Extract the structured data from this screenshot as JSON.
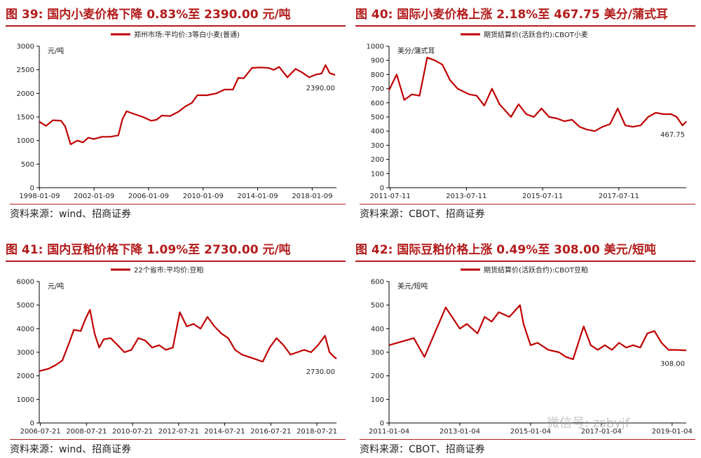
{
  "theme": {
    "accent": "#b31b1b",
    "series": "#c00000"
  },
  "watermark": "微信号: zsbyjf",
  "chart_data": [
    {
      "type": "line",
      "title_prefix": "图 39:",
      "title": "国内小麦价格下降 0.83%至 2390.00 元/吨",
      "legend": "郑州市场:平均价:3等白小麦(普通)",
      "unit": "元/吨",
      "source": "资料来源：wind、招商证券",
      "ylim": [
        0,
        3000
      ],
      "yticks": [
        0,
        500,
        1000,
        1500,
        2000,
        2500,
        3000
      ],
      "xlim": [
        1998.0,
        2019.8
      ],
      "xticks": [
        {
          "label": "1998-01-09",
          "x": 1998.02
        },
        {
          "label": "2002-01-09",
          "x": 2002.02
        },
        {
          "label": "2006-01-09",
          "x": 2006.02
        },
        {
          "label": "2010-01-09",
          "x": 2010.02
        },
        {
          "label": "2014-01-09",
          "x": 2014.02
        },
        {
          "label": "2018-01-09",
          "x": 2018.02
        }
      ],
      "end_label": "2390.00",
      "series": [
        {
          "points": [
            [
              1998.0,
              1400
            ],
            [
              1998.5,
              1310
            ],
            [
              1999.0,
              1430
            ],
            [
              1999.6,
              1420
            ],
            [
              1999.9,
              1300
            ],
            [
              2000.3,
              920
            ],
            [
              2000.8,
              1000
            ],
            [
              2001.2,
              960
            ],
            [
              2001.6,
              1060
            ],
            [
              2002.0,
              1030
            ],
            [
              2002.6,
              1080
            ],
            [
              2003.2,
              1080
            ],
            [
              2003.8,
              1110
            ],
            [
              2004.1,
              1450
            ],
            [
              2004.4,
              1620
            ],
            [
              2005.0,
              1560
            ],
            [
              2005.6,
              1500
            ],
            [
              2006.2,
              1420
            ],
            [
              2006.6,
              1440
            ],
            [
              2007.0,
              1530
            ],
            [
              2007.6,
              1520
            ],
            [
              2008.2,
              1610
            ],
            [
              2008.7,
              1720
            ],
            [
              2009.2,
              1800
            ],
            [
              2009.6,
              1960
            ],
            [
              2010.3,
              1960
            ],
            [
              2011.0,
              2000
            ],
            [
              2011.6,
              2080
            ],
            [
              2012.2,
              2080
            ],
            [
              2012.6,
              2330
            ],
            [
              2013.0,
              2320
            ],
            [
              2013.6,
              2540
            ],
            [
              2014.2,
              2550
            ],
            [
              2014.8,
              2540
            ],
            [
              2015.2,
              2500
            ],
            [
              2015.6,
              2560
            ],
            [
              2016.2,
              2340
            ],
            [
              2016.8,
              2520
            ],
            [
              2017.3,
              2440
            ],
            [
              2017.8,
              2340
            ],
            [
              2018.3,
              2400
            ],
            [
              2018.7,
              2420
            ],
            [
              2019.0,
              2600
            ],
            [
              2019.3,
              2430
            ],
            [
              2019.7,
              2390
            ]
          ]
        }
      ]
    },
    {
      "type": "line",
      "title_prefix": "图 40:",
      "title": "国际小麦价格上涨 2.18%至 467.75 美分/蒲式耳",
      "legend": "期货结算价(活跃合约):CBOT小麦",
      "unit": "美分/蒲式耳",
      "source": "资料来源：CBOT、招商证券",
      "ylim": [
        0,
        1000
      ],
      "yticks": [
        0,
        100,
        200,
        300,
        400,
        500,
        600,
        700,
        800,
        900,
        1000
      ],
      "xlim": [
        2011.5,
        2019.3
      ],
      "xticks": [
        {
          "label": "2011-07-11",
          "x": 2011.53
        },
        {
          "label": "2013-07-11",
          "x": 2013.53
        },
        {
          "label": "2015-07-11",
          "x": 2015.53
        },
        {
          "label": "2017-07-11",
          "x": 2017.53
        }
      ],
      "end_label": "467.75",
      "series": [
        {
          "points": [
            [
              2011.5,
              690
            ],
            [
              2011.7,
              800
            ],
            [
              2011.9,
              620
            ],
            [
              2012.1,
              660
            ],
            [
              2012.3,
              650
            ],
            [
              2012.5,
              920
            ],
            [
              2012.7,
              900
            ],
            [
              2012.9,
              870
            ],
            [
              2013.1,
              760
            ],
            [
              2013.3,
              700
            ],
            [
              2013.6,
              660
            ],
            [
              2013.8,
              650
            ],
            [
              2014.0,
              580
            ],
            [
              2014.2,
              700
            ],
            [
              2014.4,
              590
            ],
            [
              2014.7,
              500
            ],
            [
              2014.9,
              590
            ],
            [
              2015.1,
              520
            ],
            [
              2015.3,
              500
            ],
            [
              2015.5,
              560
            ],
            [
              2015.7,
              500
            ],
            [
              2015.9,
              490
            ],
            [
              2016.1,
              470
            ],
            [
              2016.3,
              480
            ],
            [
              2016.5,
              430
            ],
            [
              2016.7,
              410
            ],
            [
              2016.9,
              400
            ],
            [
              2017.1,
              430
            ],
            [
              2017.3,
              450
            ],
            [
              2017.5,
              560
            ],
            [
              2017.7,
              440
            ],
            [
              2017.9,
              430
            ],
            [
              2018.1,
              440
            ],
            [
              2018.3,
              500
            ],
            [
              2018.5,
              530
            ],
            [
              2018.7,
              520
            ],
            [
              2018.9,
              520
            ],
            [
              2019.05,
              500
            ],
            [
              2019.2,
              440
            ],
            [
              2019.3,
              468
            ]
          ]
        }
      ]
    },
    {
      "type": "line",
      "title_prefix": "图 41:",
      "title": "国内豆粕价格下降 1.09%至 2730.00 元/吨",
      "legend": "22个省市:平均价:豆粕",
      "unit": "元/吨",
      "source": "资料来源：wind、招商证券",
      "ylim": [
        0,
        6000
      ],
      "yticks": [
        0,
        1000,
        2000,
        3000,
        4000,
        5000,
        6000
      ],
      "xlim": [
        2006.5,
        2019.4
      ],
      "xticks": [
        {
          "label": "2006-07-21",
          "x": 2006.55
        },
        {
          "label": "2008-07-21",
          "x": 2008.55
        },
        {
          "label": "2010-07-21",
          "x": 2010.55
        },
        {
          "label": "2012-07-21",
          "x": 2012.55
        },
        {
          "label": "2014-07-21",
          "x": 2014.55
        },
        {
          "label": "2016-07-21",
          "x": 2016.55
        },
        {
          "label": "2018-07-21",
          "x": 2018.55
        }
      ],
      "end_label": "2730.00",
      "series": [
        {
          "points": [
            [
              2006.5,
              2200
            ],
            [
              2006.9,
              2300
            ],
            [
              2007.2,
              2450
            ],
            [
              2007.5,
              2650
            ],
            [
              2007.8,
              3400
            ],
            [
              2008.0,
              3950
            ],
            [
              2008.3,
              3900
            ],
            [
              2008.5,
              4400
            ],
            [
              2008.7,
              4800
            ],
            [
              2008.9,
              3800
            ],
            [
              2009.1,
              3200
            ],
            [
              2009.3,
              3550
            ],
            [
              2009.6,
              3600
            ],
            [
              2009.9,
              3300
            ],
            [
              2010.2,
              3000
            ],
            [
              2010.5,
              3100
            ],
            [
              2010.8,
              3600
            ],
            [
              2011.1,
              3500
            ],
            [
              2011.4,
              3200
            ],
            [
              2011.7,
              3300
            ],
            [
              2012.0,
              3100
            ],
            [
              2012.3,
              3200
            ],
            [
              2012.6,
              4700
            ],
            [
              2012.9,
              4100
            ],
            [
              2013.2,
              4200
            ],
            [
              2013.5,
              4000
            ],
            [
              2013.8,
              4500
            ],
            [
              2014.1,
              4100
            ],
            [
              2014.4,
              3800
            ],
            [
              2014.7,
              3600
            ],
            [
              2015.0,
              3100
            ],
            [
              2015.3,
              2900
            ],
            [
              2015.6,
              2800
            ],
            [
              2015.9,
              2700
            ],
            [
              2016.2,
              2600
            ],
            [
              2016.5,
              3200
            ],
            [
              2016.8,
              3600
            ],
            [
              2017.1,
              3300
            ],
            [
              2017.4,
              2900
            ],
            [
              2017.7,
              3000
            ],
            [
              2018.0,
              3100
            ],
            [
              2018.3,
              3000
            ],
            [
              2018.6,
              3300
            ],
            [
              2018.9,
              3700
            ],
            [
              2019.1,
              3000
            ],
            [
              2019.3,
              2800
            ],
            [
              2019.4,
              2730
            ]
          ]
        }
      ]
    },
    {
      "type": "line",
      "title_prefix": "图 42:",
      "title": "国际豆粕价格上涨 0.49%至 308.00 美元/短吨",
      "legend": "期货结算价(活跃合约):CBOT豆粕",
      "unit": "美元/短吨",
      "source": "资料来源：CBOT、招商证券",
      "ylim": [
        0,
        600
      ],
      "yticks": [
        0,
        100,
        200,
        300,
        400,
        500,
        600
      ],
      "xlim": [
        2011.0,
        2019.4
      ],
      "xticks": [
        {
          "label": "2011-01-04",
          "x": 2011.0
        },
        {
          "label": "2013-01-04",
          "x": 2013.0
        },
        {
          "label": "2015-01-04",
          "x": 2015.0
        },
        {
          "label": "2017-01-04",
          "x": 2017.0
        },
        {
          "label": "2019-01-04",
          "x": 2019.0
        }
      ],
      "end_label": "308.00",
      "series": [
        {
          "points": [
            [
              2011.0,
              330
            ],
            [
              2011.7,
              360
            ],
            [
              2012.0,
              280
            ],
            [
              2012.6,
              490
            ],
            [
              2013.0,
              400
            ],
            [
              2013.2,
              420
            ],
            [
              2013.5,
              380
            ],
            [
              2013.7,
              450
            ],
            [
              2013.9,
              430
            ],
            [
              2014.1,
              470
            ],
            [
              2014.4,
              450
            ],
            [
              2014.7,
              500
            ],
            [
              2014.8,
              420
            ],
            [
              2015.0,
              330
            ],
            [
              2015.2,
              340
            ],
            [
              2015.5,
              310
            ],
            [
              2015.8,
              300
            ],
            [
              2016.0,
              280
            ],
            [
              2016.2,
              270
            ],
            [
              2016.5,
              410
            ],
            [
              2016.7,
              330
            ],
            [
              2016.9,
              310
            ],
            [
              2017.1,
              330
            ],
            [
              2017.3,
              310
            ],
            [
              2017.5,
              340
            ],
            [
              2017.7,
              320
            ],
            [
              2017.9,
              330
            ],
            [
              2018.1,
              320
            ],
            [
              2018.3,
              380
            ],
            [
              2018.5,
              390
            ],
            [
              2018.7,
              340
            ],
            [
              2018.9,
              310
            ],
            [
              2019.1,
              310
            ],
            [
              2019.4,
              308
            ]
          ]
        }
      ]
    }
  ]
}
